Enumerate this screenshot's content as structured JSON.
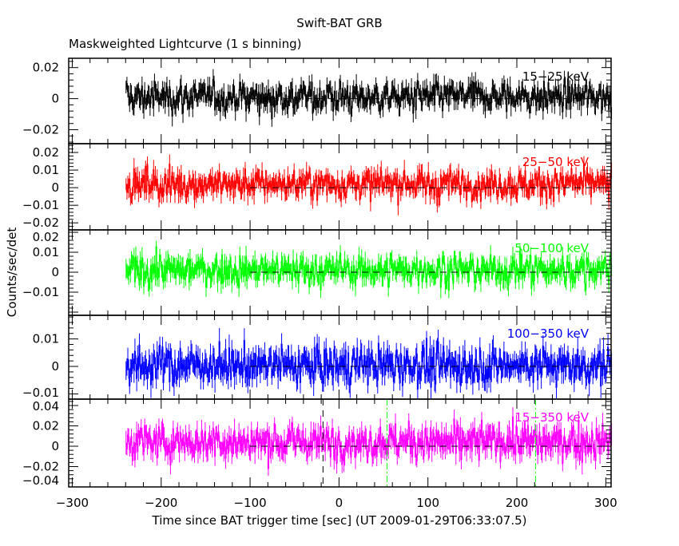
{
  "chart_data": {
    "type": "line",
    "title": "Swift-BAT GRB",
    "subtitle": "Maskweighted Lightcurve (1 s binning)",
    "xlabel": "Time since BAT trigger time [sec] (UT 2009-01-29T06:33:07.5)",
    "ylabel": "Counts/sec/det",
    "xlim": [
      -304,
      306
    ],
    "xticks": [
      -300,
      -200,
      -100,
      0,
      100,
      200,
      300
    ],
    "xtick_labels": [
      "−300",
      "−200",
      "−100",
      "0",
      "100",
      "200",
      "300"
    ],
    "data_range": [
      -240,
      306
    ],
    "bin_seconds": 1,
    "zero_line_from": -100,
    "vertical_markers": [
      {
        "x": -18,
        "color": "#000000",
        "style": "dashed"
      },
      {
        "x": 54,
        "color": "#00ff00",
        "style": "dashdot"
      },
      {
        "x": 221,
        "color": "#00ff00",
        "style": "dashdot"
      }
    ],
    "panels": [
      {
        "name": "15-25 keV",
        "label": "15−25 keV",
        "color": "#000000",
        "ylim": [
          -0.029,
          0.026
        ],
        "yticks": [
          0.02,
          0,
          -0.02
        ],
        "ytick_labels": [
          "0.02",
          "0",
          "−0.02"
        ],
        "mean": 0.001,
        "sigma": 0.0065
      },
      {
        "name": "25-50 keV",
        "label": "25−50 keV",
        "color": "#ff0000",
        "ylim": [
          -0.024,
          0.025
        ],
        "yticks": [
          0.02,
          0.01,
          0,
          -0.01,
          -0.02
        ],
        "ytick_labels": [
          "0.02",
          "0.01",
          "0",
          "−0.01",
          "−0.02"
        ],
        "mean": 0.002,
        "sigma": 0.0055
      },
      {
        "name": "50-100 keV",
        "label": "50−100 keV",
        "color": "#00ff00",
        "ylim": [
          -0.0216,
          0.0212
        ],
        "yticks": [
          0.02,
          0.01,
          0,
          -0.01
        ],
        "ytick_labels": [
          "0.02",
          "0.01",
          "0",
          "−0.01"
        ],
        "mean": 0.001,
        "sigma": 0.005
      },
      {
        "name": "100-350 keV",
        "label": "100−350 keV",
        "color": "#0000ff",
        "ylim": [
          -0.0119,
          0.0186
        ],
        "yticks": [
          0.01,
          0,
          -0.01
        ],
        "ytick_labels": [
          "0.01",
          "0",
          "−0.01"
        ],
        "mean": 0.0005,
        "sigma": 0.0045
      },
      {
        "name": "15-350 keV",
        "label": "15−350 keV",
        "color": "#ff00ff",
        "ylim": [
          -0.04,
          0.0463
        ],
        "yticks": [
          0.04,
          0.02,
          0,
          -0.02,
          -0.04
        ],
        "ytick_labels": [
          "0.04",
          "0.02",
          "0",
          "−0.02",
          "−0.04"
        ],
        "mean": 0.004,
        "sigma": 0.011
      }
    ]
  }
}
